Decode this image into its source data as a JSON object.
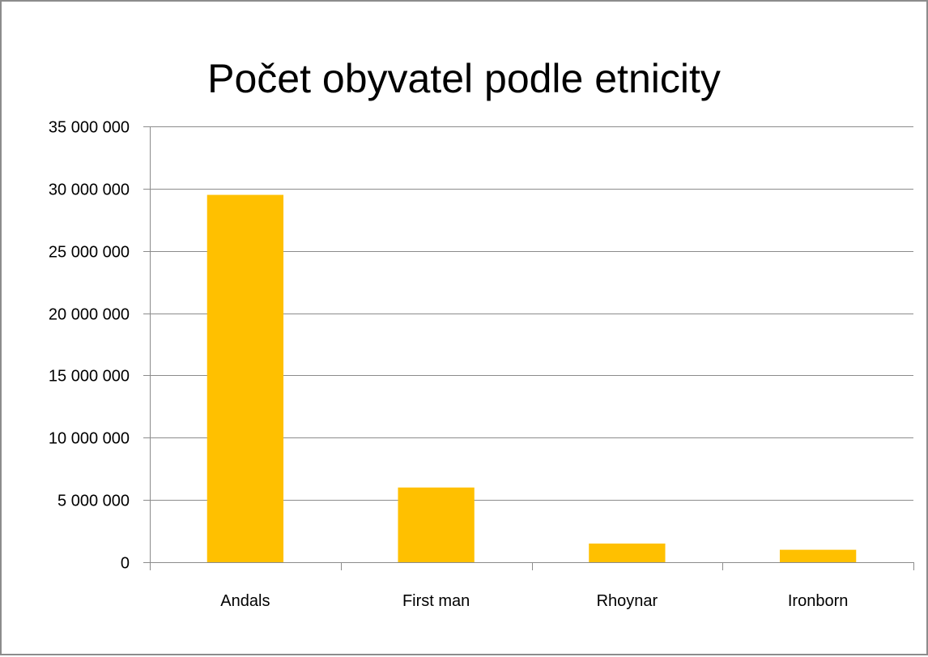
{
  "chart_data": {
    "type": "bar",
    "title": "Počet obyvatel podle etnicity",
    "categories": [
      "Andals",
      "First man",
      "Rhoynar",
      "Ironborn"
    ],
    "values": [
      29500000,
      6000000,
      1500000,
      1000000
    ],
    "ylim": [
      0,
      35000000
    ],
    "yticks": [
      0,
      5000000,
      10000000,
      15000000,
      20000000,
      25000000,
      30000000,
      35000000
    ],
    "ytick_labels": [
      "0",
      "5 000 000",
      "10 000 000",
      "15 000 000",
      "20 000 000",
      "25 000 000",
      "30 000 000",
      "35 000 000"
    ],
    "grid": true,
    "legend": "none",
    "bar_color": "#FFC000",
    "grid_color": "#8c8c8c"
  }
}
